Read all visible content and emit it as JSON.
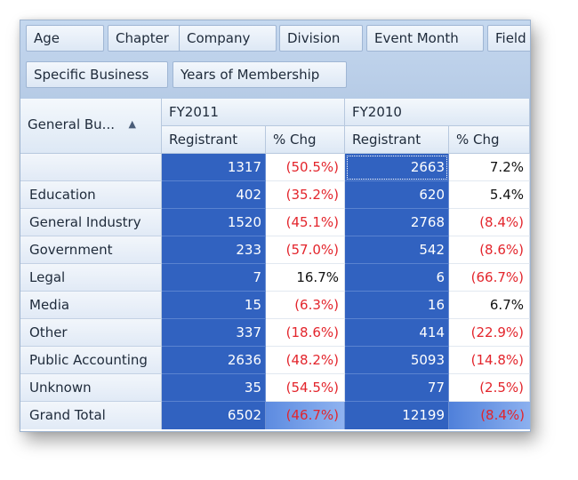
{
  "filter_fields": [
    "Age",
    "Chapter",
    "Company",
    "Division",
    "Event Month",
    "Field",
    "Specific Business",
    "Years of Membership"
  ],
  "row_field": {
    "label": "General Bu...",
    "sort_icon": "triangle-up-icon"
  },
  "column_groups": [
    "FY2011",
    "FY2010"
  ],
  "measures": [
    "Registrant",
    "% Chg",
    "Registrant",
    "% Chg"
  ],
  "rows": [
    {
      "label": "",
      "fy2011_registrant": "1317",
      "fy2011_pct": "(50.5%)",
      "fy2010_registrant": "2663",
      "fy2010_pct": "7.2%"
    },
    {
      "label": "Education",
      "fy2011_registrant": "402",
      "fy2011_pct": "(35.2%)",
      "fy2010_registrant": "620",
      "fy2010_pct": "5.4%"
    },
    {
      "label": "General Industry",
      "fy2011_registrant": "1520",
      "fy2011_pct": "(45.1%)",
      "fy2010_registrant": "2768",
      "fy2010_pct": "(8.4%)"
    },
    {
      "label": "Government",
      "fy2011_registrant": "233",
      "fy2011_pct": "(57.0%)",
      "fy2010_registrant": "542",
      "fy2010_pct": "(8.6%)"
    },
    {
      "label": "Legal",
      "fy2011_registrant": "7",
      "fy2011_pct": "16.7%",
      "fy2010_registrant": "6",
      "fy2010_pct": "(66.7%)"
    },
    {
      "label": "Media",
      "fy2011_registrant": "15",
      "fy2011_pct": "(6.3%)",
      "fy2010_registrant": "16",
      "fy2010_pct": "6.7%"
    },
    {
      "label": "Other",
      "fy2011_registrant": "337",
      "fy2011_pct": "(18.6%)",
      "fy2010_registrant": "414",
      "fy2010_pct": "(22.9%)"
    },
    {
      "label": "Public Accounting",
      "fy2011_registrant": "2636",
      "fy2011_pct": "(48.2%)",
      "fy2010_registrant": "5093",
      "fy2010_pct": "(14.8%)"
    },
    {
      "label": "Unknown",
      "fy2011_registrant": "35",
      "fy2011_pct": "(54.5%)",
      "fy2010_registrant": "77",
      "fy2010_pct": "(2.5%)"
    }
  ],
  "grand_total": {
    "label": "Grand Total",
    "fy2011_registrant": "6502",
    "fy2011_pct": "(46.7%)",
    "fy2010_registrant": "12199",
    "fy2010_pct": "(8.4%)"
  },
  "colors": {
    "selection": "#3162c0",
    "negative": "#e3252c",
    "header": "#dde8f5"
  }
}
